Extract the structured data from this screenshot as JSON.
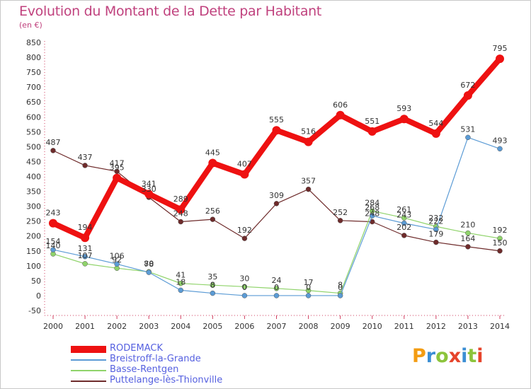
{
  "title": "Evolution du Montant de la Dette par Habitant",
  "unit": "(en €)",
  "logo": {
    "text": "Proxiti",
    "letters": [
      "P",
      "r",
      "o",
      "x",
      "i",
      "t",
      "i"
    ],
    "colors": [
      "#f39c12",
      "#3b8ed4",
      "#8cc43c",
      "#e6442b",
      "#3b8ed4",
      "#8cc43c",
      "#e6442b"
    ]
  },
  "chart_data": {
    "type": "line",
    "x": [
      "2000",
      "2001",
      "2002",
      "2003",
      "2004",
      "2005",
      "2006",
      "2007",
      "2008",
      "2009",
      "2010",
      "2011",
      "2012",
      "2013",
      "2014"
    ],
    "ylim": [
      -50,
      850
    ],
    "yticks": [
      -50,
      0,
      50,
      100,
      150,
      200,
      250,
      300,
      350,
      400,
      450,
      500,
      550,
      600,
      650,
      700,
      750,
      800,
      850
    ],
    "grid": false,
    "legend_position": "bottom-left",
    "series": [
      {
        "name": "RODEMACK",
        "color": "#ee1111",
        "values": [
          243,
          194,
          395,
          341,
          289,
          445,
          407,
          555,
          516,
          606,
          551,
          593,
          544,
          672,
          795
        ]
      },
      {
        "name": "Breistroff-la-Grande",
        "color": "#5b9bd5",
        "values": [
          154,
          131,
          106,
          78,
          18,
          8,
          0,
          0,
          0,
          0,
          268,
          243,
          222,
          531,
          493
        ]
      },
      {
        "name": "Basse-Rentgen",
        "color": "#8fd36a",
        "values": [
          140,
          107,
          92,
          80,
          41,
          35,
          30,
          24,
          17,
          8,
          284,
          261,
          232,
          210,
          192
        ]
      },
      {
        "name": "Puttelange-lès-Thionville",
        "color": "#6e2b2b",
        "values": [
          487,
          437,
          417,
          330,
          248,
          256,
          192,
          309,
          357,
          252,
          248,
          202,
          179,
          164,
          150
        ]
      }
    ]
  }
}
